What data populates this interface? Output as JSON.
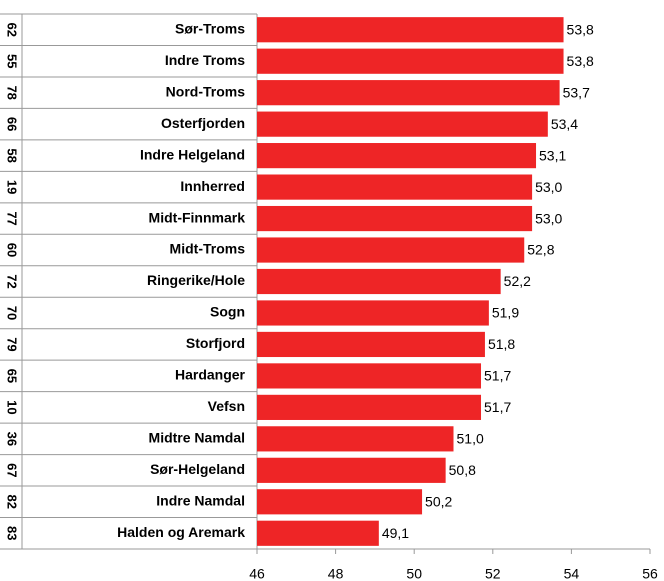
{
  "chart_data": {
    "type": "bar",
    "orientation": "horizontal",
    "codes": [
      "62",
      "55",
      "78",
      "66",
      "58",
      "19",
      "77",
      "60",
      "72",
      "70",
      "79",
      "65",
      "10",
      "36",
      "67",
      "82",
      "83"
    ],
    "categories": [
      "Sør-Troms",
      "Indre Troms",
      "Nord-Troms",
      "Osterfjorden",
      "Indre Helgeland",
      "Innherred",
      "Midt-Finnmark",
      "Midt-Troms",
      "Ringerike/Hole",
      "Sogn",
      "Storfjord",
      "Hardanger",
      "Vefsn",
      "Midtre Namdal",
      "Sør-Helgeland",
      "Indre Namdal",
      "Halden og Aremark"
    ],
    "values": [
      53.8,
      53.8,
      53.7,
      53.4,
      53.1,
      53.0,
      53.0,
      52.8,
      52.2,
      51.9,
      51.8,
      51.7,
      51.7,
      51.0,
      50.8,
      50.2,
      49.1
    ],
    "value_labels": [
      "53,8",
      "53,8",
      "53,7",
      "53,4",
      "53,1",
      "53,0",
      "53,0",
      "52,8",
      "52,2",
      "51,9",
      "51,8",
      "51,7",
      "51,7",
      "51,0",
      "50,8",
      "50,2",
      "49,1"
    ],
    "color": "#ee2526",
    "xlim": [
      46,
      56
    ],
    "xticks": [
      46,
      48,
      50,
      52,
      54,
      56
    ]
  }
}
